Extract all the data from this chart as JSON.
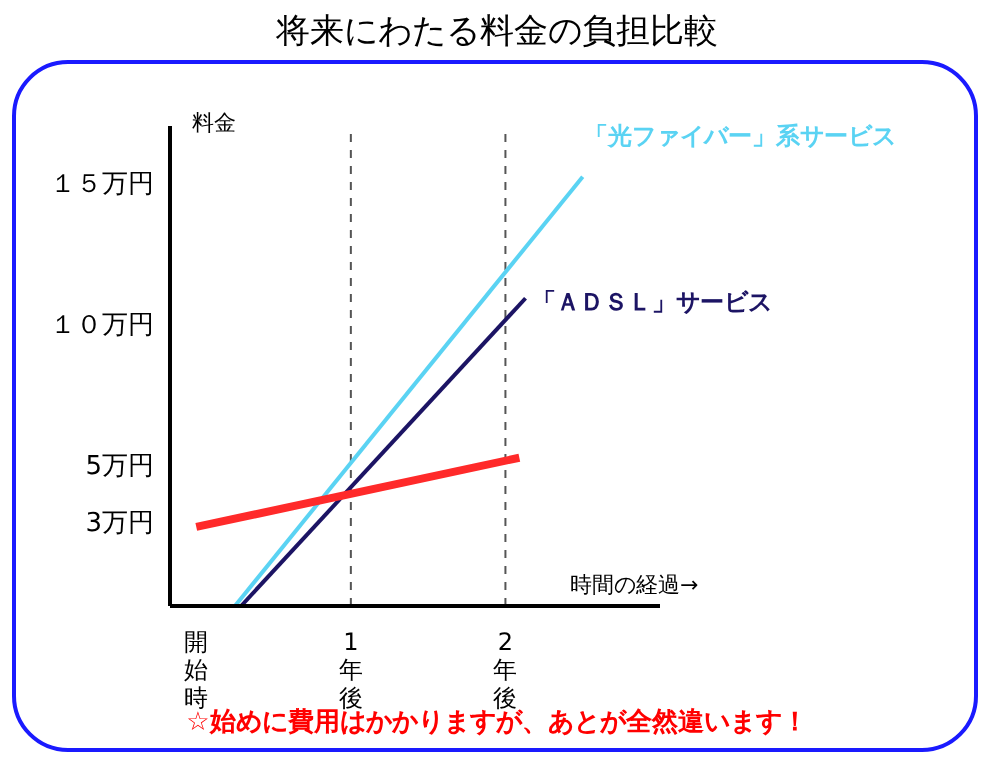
{
  "chart_data": {
    "type": "line",
    "title": "将来にわたる料金の負担比較",
    "xlabel": "時間の経過→",
    "ylabel": "料金",
    "annotations": [
      "☆始めに費用はかかりますが、あとが全然違います！"
    ],
    "xlim": [
      -0.17,
      3.0
    ],
    "xticks": [
      {
        "value": 0,
        "label": "開始時"
      },
      {
        "value": 1,
        "label": "1年後"
      },
      {
        "value": 2,
        "label": "2年後"
      }
    ],
    "ylim": [
      0,
      17
    ],
    "yticks": [
      {
        "value": 3,
        "label": "3万円"
      },
      {
        "value": 5,
        "label": "5万円"
      },
      {
        "value": 10,
        "label": "１０万円"
      },
      {
        "value": 15,
        "label": "１５万円"
      }
    ],
    "ref_lines": [
      {
        "axis": "x",
        "value": 1,
        "color": "#555555",
        "line_style": "dashed"
      },
      {
        "axis": "x",
        "value": 2,
        "color": "#555555",
        "line_style": "dashed"
      }
    ],
    "grid": false,
    "legend": false,
    "marker": "none",
    "series": [
      {
        "name": "「光ファイバー」系サービス",
        "color": "#5ad3f3",
        "x": [
          0.25,
          2.5
        ],
        "values": [
          0,
          15.2
        ]
      },
      {
        "name": "「ＡＤＳＬ」サービス",
        "color": "#1c1464",
        "x": [
          0.29,
          2.13
        ],
        "values": [
          0,
          10.9
        ]
      },
      {
        "color": "#ff2a2a",
        "x": [
          0,
          2.09
        ],
        "values": [
          2.8,
          5.25
        ]
      }
    ]
  }
}
